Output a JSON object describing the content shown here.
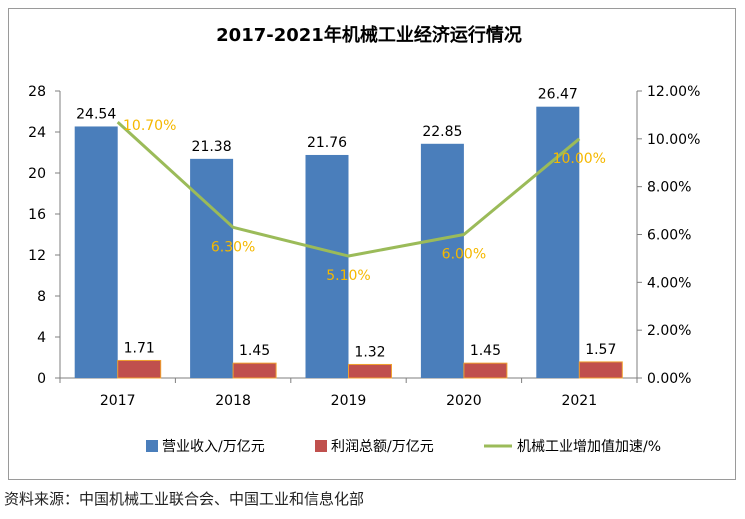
{
  "chart_data": {
    "type": "bar",
    "title": "2017-2021年机械工业经济运行情况",
    "categories": [
      "2017",
      "2018",
      "2019",
      "2020",
      "2021"
    ],
    "series": [
      {
        "name": "营业收入/万亿元",
        "type": "bar",
        "axis": "left",
        "color": "#4a7ebb",
        "values": [
          24.54,
          21.38,
          21.76,
          22.85,
          26.47
        ],
        "labels": [
          "24.54",
          "21.38",
          "21.76",
          "22.85",
          "26.47"
        ]
      },
      {
        "name": "利润总额/万亿元",
        "type": "bar",
        "axis": "left",
        "color": "#c0504d",
        "values": [
          1.71,
          1.45,
          1.32,
          1.45,
          1.57
        ],
        "labels": [
          "1.71",
          "1.45",
          "1.32",
          "1.45",
          "1.57"
        ]
      },
      {
        "name": "机械工业增加值加速/%",
        "type": "line",
        "axis": "right",
        "color": "#9bbb59",
        "values": [
          10.7,
          6.3,
          5.1,
          6.0,
          10.0
        ],
        "labels": [
          "10.70%",
          "6.30%",
          "5.10%",
          "6.00%",
          "10.00%"
        ],
        "label_color": "#f5b800"
      }
    ],
    "y_left": {
      "range": [
        0,
        28
      ],
      "ticks": [
        "0",
        "4",
        "8",
        "12",
        "16",
        "20",
        "24",
        "28"
      ]
    },
    "y_right": {
      "range": [
        0,
        12
      ],
      "ticks": [
        "0.00%",
        "2.00%",
        "4.00%",
        "6.00%",
        "8.00%",
        "10.00%",
        "12.00%"
      ]
    },
    "legend_position": "bottom",
    "grid": false
  },
  "source": "资料来源：中国机械工业联合会、中国工业和信息化部"
}
